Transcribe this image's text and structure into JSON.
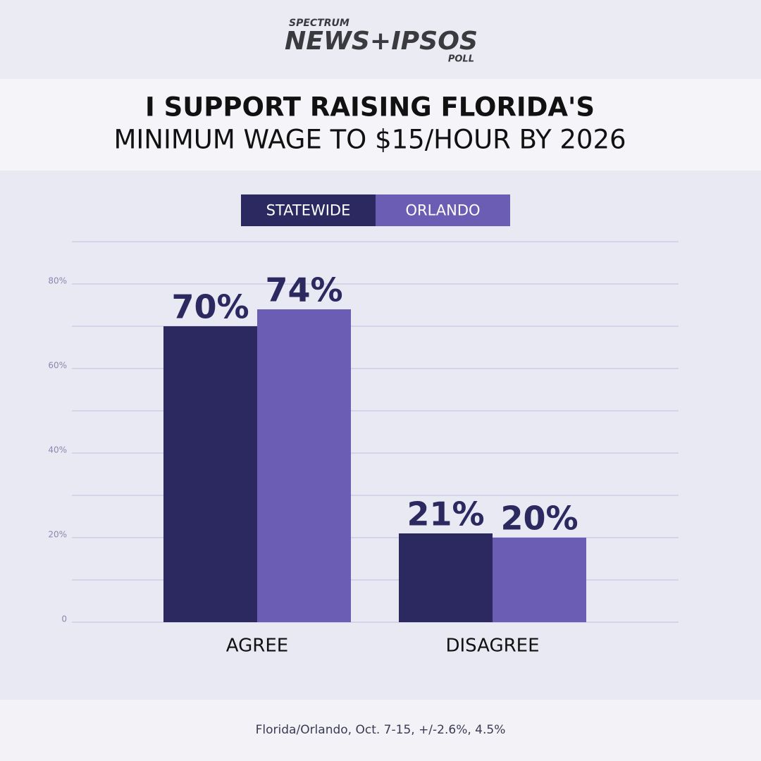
{
  "branding": {
    "top": "SPECTRUM",
    "main": "NEWS+IPSOS",
    "bottom": "POLL"
  },
  "chart_data": {
    "type": "bar",
    "title_lines": [
      "I SUPPORT RAISING FLORIDA'S",
      "MINIMUM WAGE TO $15/HOUR BY 2026"
    ],
    "categories": [
      "AGREE",
      "DISAGREE"
    ],
    "series": [
      {
        "name": "STATEWIDE",
        "color": "#2b2960",
        "values": [
          70,
          21
        ],
        "value_labels": [
          "70%",
          "21%"
        ]
      },
      {
        "name": "ORLANDO",
        "color": "#6b5db3",
        "values": [
          74,
          20
        ],
        "value_labels": [
          "74%",
          "20%"
        ]
      }
    ],
    "ylim": [
      0,
      90
    ],
    "yticks": [
      0,
      {
        "value": 20,
        "label": "20%"
      },
      {
        "value": 40,
        "label": "40%"
      },
      {
        "value": 60,
        "label": "60%"
      },
      {
        "value": 80,
        "label": "80%"
      }
    ],
    "minor_gridlines": [
      10,
      30,
      50,
      70,
      90
    ],
    "grid": true,
    "legend_position": "top",
    "note": "Florida/Orlando, Oct. 7-15, +/-2.6%, 4.5%"
  }
}
